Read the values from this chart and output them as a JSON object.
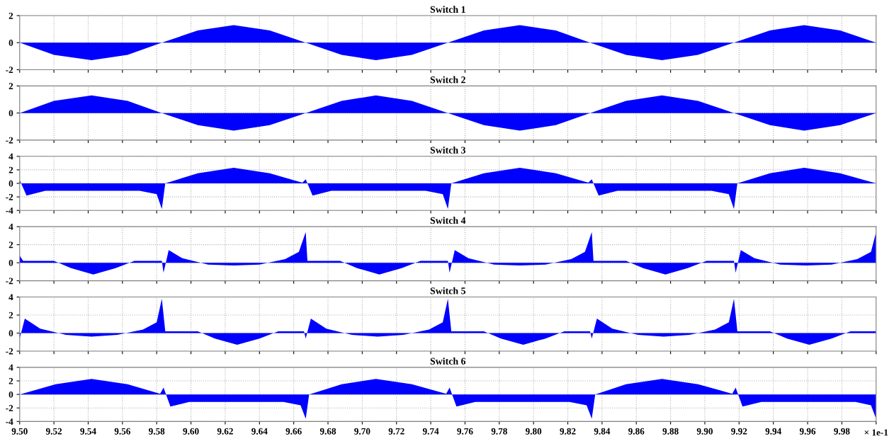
{
  "chart_data": [
    {
      "type": "area",
      "title": "Switch 1",
      "tick_labels": "y",
      "grid": true,
      "xlim": [
        9.5,
        10.0
      ],
      "ylim": [
        -2,
        2
      ],
      "yticks": [
        -2,
        0,
        2
      ],
      "xticks": [
        {
          "value": 9.5,
          "label": null
        },
        {
          "value": 9.52,
          "label": null
        },
        {
          "value": 9.54,
          "label": null
        },
        {
          "value": 9.56,
          "label": null
        },
        {
          "value": 9.58,
          "label": null
        },
        {
          "value": 9.6,
          "label": null
        },
        {
          "value": 9.62,
          "label": null
        },
        {
          "value": 9.64,
          "label": null
        },
        {
          "value": 9.66,
          "label": null
        },
        {
          "value": 9.68,
          "label": null
        },
        {
          "value": 9.7,
          "label": null
        },
        {
          "value": 9.72,
          "label": null
        },
        {
          "value": 9.74,
          "label": null
        },
        {
          "value": 9.76,
          "label": null
        },
        {
          "value": 9.78,
          "label": null
        },
        {
          "value": 9.8,
          "label": null
        },
        {
          "value": 9.82,
          "label": null
        },
        {
          "value": 9.84,
          "label": null
        },
        {
          "value": 9.86,
          "label": null
        },
        {
          "value": 9.88,
          "label": null
        },
        {
          "value": 9.9,
          "label": null
        },
        {
          "value": 9.92,
          "label": null
        },
        {
          "value": 9.94,
          "label": null
        },
        {
          "value": 9.96,
          "label": null
        },
        {
          "value": 9.98,
          "label": null
        },
        {
          "value": 10.0,
          "label": null
        }
      ],
      "x": [
        9.5,
        9.52,
        9.542,
        9.563,
        9.583,
        9.604,
        9.625,
        9.646,
        9.667,
        9.688,
        9.708,
        9.729,
        9.75,
        9.771,
        9.792,
        9.813,
        9.833,
        9.854,
        9.875,
        9.896,
        9.917,
        9.938,
        9.958,
        9.979,
        10.0
      ],
      "series": [
        {
          "color": "#0000ff",
          "values": [
            0,
            -0.9,
            -1.3,
            -0.9,
            0,
            0.9,
            1.3,
            0.9,
            0,
            -0.9,
            -1.3,
            -0.9,
            0,
            0.9,
            1.3,
            0.9,
            0,
            -0.9,
            -1.3,
            -0.9,
            0,
            0.9,
            1.3,
            0.9,
            0
          ]
        }
      ]
    },
    {
      "type": "area",
      "title": "Switch 2",
      "tick_labels": "y",
      "grid": true,
      "xlim": [
        9.5,
        10.0
      ],
      "ylim": [
        -2,
        2
      ],
      "yticks": [
        -2,
        0,
        2
      ],
      "xticks": [
        {
          "value": 9.5,
          "label": null
        },
        {
          "value": 9.52,
          "label": null
        },
        {
          "value": 9.54,
          "label": null
        },
        {
          "value": 9.56,
          "label": null
        },
        {
          "value": 9.58,
          "label": null
        },
        {
          "value": 9.6,
          "label": null
        },
        {
          "value": 9.62,
          "label": null
        },
        {
          "value": 9.64,
          "label": null
        },
        {
          "value": 9.66,
          "label": null
        },
        {
          "value": 9.68,
          "label": null
        },
        {
          "value": 9.7,
          "label": null
        },
        {
          "value": 9.72,
          "label": null
        },
        {
          "value": 9.74,
          "label": null
        },
        {
          "value": 9.76,
          "label": null
        },
        {
          "value": 9.78,
          "label": null
        },
        {
          "value": 9.8,
          "label": null
        },
        {
          "value": 9.82,
          "label": null
        },
        {
          "value": 9.84,
          "label": null
        },
        {
          "value": 9.86,
          "label": null
        },
        {
          "value": 9.88,
          "label": null
        },
        {
          "value": 9.9,
          "label": null
        },
        {
          "value": 9.92,
          "label": null
        },
        {
          "value": 9.94,
          "label": null
        },
        {
          "value": 9.96,
          "label": null
        },
        {
          "value": 9.98,
          "label": null
        },
        {
          "value": 10.0,
          "label": null
        }
      ],
      "x": [
        9.5,
        9.52,
        9.542,
        9.563,
        9.583,
        9.604,
        9.625,
        9.646,
        9.667,
        9.688,
        9.708,
        9.729,
        9.75,
        9.771,
        9.792,
        9.813,
        9.833,
        9.854,
        9.875,
        9.896,
        9.917,
        9.938,
        9.958,
        9.979,
        10.0
      ],
      "series": [
        {
          "color": "#0000ff",
          "values": [
            0,
            0.9,
            1.3,
            0.9,
            0,
            -0.9,
            -1.3,
            -0.9,
            0,
            0.9,
            1.3,
            0.9,
            0,
            -0.9,
            -1.3,
            -0.9,
            0,
            0.9,
            1.3,
            0.9,
            0,
            -0.9,
            -1.3,
            -0.9,
            0
          ]
        }
      ]
    },
    {
      "type": "area",
      "title": "Switch 3",
      "tick_labels": "y",
      "grid": true,
      "xlim": [
        9.5,
        10.0
      ],
      "ylim": [
        -4,
        4
      ],
      "yticks": [
        -4,
        -2,
        0,
        2,
        4
      ],
      "xticks": [
        {
          "value": 9.5,
          "label": null
        },
        {
          "value": 9.52,
          "label": null
        },
        {
          "value": 9.54,
          "label": null
        },
        {
          "value": 9.56,
          "label": null
        },
        {
          "value": 9.58,
          "label": null
        },
        {
          "value": 9.6,
          "label": null
        },
        {
          "value": 9.62,
          "label": null
        },
        {
          "value": 9.64,
          "label": null
        },
        {
          "value": 9.66,
          "label": null
        },
        {
          "value": 9.68,
          "label": null
        },
        {
          "value": 9.7,
          "label": null
        },
        {
          "value": 9.72,
          "label": null
        },
        {
          "value": 9.74,
          "label": null
        },
        {
          "value": 9.76,
          "label": null
        },
        {
          "value": 9.78,
          "label": null
        },
        {
          "value": 9.8,
          "label": null
        },
        {
          "value": 9.82,
          "label": null
        },
        {
          "value": 9.84,
          "label": null
        },
        {
          "value": 9.86,
          "label": null
        },
        {
          "value": 9.88,
          "label": null
        },
        {
          "value": 9.9,
          "label": null
        },
        {
          "value": 9.92,
          "label": null
        },
        {
          "value": 9.94,
          "label": null
        },
        {
          "value": 9.96,
          "label": null
        },
        {
          "value": 9.98,
          "label": null
        },
        {
          "value": 10.0,
          "label": null
        }
      ],
      "x": [
        9.5,
        9.504,
        9.515,
        9.57,
        9.58,
        9.583,
        9.585,
        9.604,
        9.625,
        9.646,
        9.665,
        9.667,
        9.671,
        9.682,
        9.737,
        9.747,
        9.75,
        9.752,
        9.771,
        9.792,
        9.813,
        9.832,
        9.834,
        9.838,
        9.849,
        9.904,
        9.914,
        9.917,
        9.919,
        9.938,
        9.958,
        9.979,
        10.0
      ],
      "series": [
        {
          "color": "#0000ff",
          "values": [
            0.5,
            -1.8,
            -1.1,
            -1.1,
            -1.6,
            -3.8,
            0,
            1.5,
            2.3,
            1.5,
            0.1,
            0.6,
            -1.8,
            -1.1,
            -1.1,
            -1.6,
            -3.8,
            0,
            1.5,
            2.3,
            1.5,
            0.1,
            0.6,
            -1.8,
            -1.1,
            -1.1,
            -1.6,
            -3.8,
            0,
            1.5,
            2.3,
            1.5,
            0
          ]
        }
      ]
    },
    {
      "type": "area",
      "title": "Switch 4",
      "tick_labels": "y",
      "grid": true,
      "xlim": [
        9.5,
        10.0
      ],
      "ylim": [
        -2,
        4
      ],
      "yticks": [
        -2,
        0,
        2,
        4
      ],
      "xticks": [
        {
          "value": 9.5,
          "label": null
        },
        {
          "value": 9.52,
          "label": null
        },
        {
          "value": 9.54,
          "label": null
        },
        {
          "value": 9.56,
          "label": null
        },
        {
          "value": 9.58,
          "label": null
        },
        {
          "value": 9.6,
          "label": null
        },
        {
          "value": 9.62,
          "label": null
        },
        {
          "value": 9.64,
          "label": null
        },
        {
          "value": 9.66,
          "label": null
        },
        {
          "value": 9.68,
          "label": null
        },
        {
          "value": 9.7,
          "label": null
        },
        {
          "value": 9.72,
          "label": null
        },
        {
          "value": 9.74,
          "label": null
        },
        {
          "value": 9.76,
          "label": null
        },
        {
          "value": 9.78,
          "label": null
        },
        {
          "value": 9.8,
          "label": null
        },
        {
          "value": 9.82,
          "label": null
        },
        {
          "value": 9.84,
          "label": null
        },
        {
          "value": 9.86,
          "label": null
        },
        {
          "value": 9.88,
          "label": null
        },
        {
          "value": 9.9,
          "label": null
        },
        {
          "value": 9.92,
          "label": null
        },
        {
          "value": 9.94,
          "label": null
        },
        {
          "value": 9.96,
          "label": null
        },
        {
          "value": 9.98,
          "label": null
        },
        {
          "value": 10.0,
          "label": null
        }
      ],
      "x": [
        9.5,
        9.502,
        9.52,
        9.53,
        9.543,
        9.556,
        9.567,
        9.583,
        9.584,
        9.587,
        9.595,
        9.61,
        9.625,
        9.64,
        9.655,
        9.663,
        9.667,
        9.668,
        9.687,
        9.697,
        9.71,
        9.723,
        9.734,
        9.75,
        9.751,
        9.754,
        9.762,
        9.777,
        9.792,
        9.807,
        9.822,
        9.83,
        9.834,
        9.835,
        9.854,
        9.864,
        9.877,
        9.89,
        9.901,
        9.917,
        9.918,
        9.921,
        9.929,
        9.944,
        9.959,
        9.974,
        9.989,
        9.997,
        10.0
      ],
      "series": [
        {
          "color": "#0000ff",
          "values": [
            0.8,
            0.2,
            0.2,
            -0.6,
            -1.3,
            -0.6,
            0.2,
            0.2,
            -1.1,
            1.4,
            0.5,
            -0.2,
            -0.3,
            -0.2,
            0.4,
            1.2,
            3.4,
            0.2,
            0.2,
            -0.6,
            -1.3,
            -0.6,
            0.2,
            0.2,
            -1.1,
            1.4,
            0.5,
            -0.2,
            -0.3,
            -0.2,
            0.4,
            1.2,
            3.4,
            0.2,
            0.2,
            -0.6,
            -1.3,
            -0.6,
            0.2,
            0.2,
            -1.1,
            1.4,
            0.5,
            -0.2,
            -0.3,
            -0.2,
            0.4,
            1.2,
            3.4
          ]
        }
      ]
    },
    {
      "type": "area",
      "title": "Switch 5",
      "tick_labels": "y",
      "grid": true,
      "xlim": [
        9.5,
        10.0
      ],
      "ylim": [
        -2,
        4
      ],
      "yticks": [
        -2,
        0,
        2,
        4
      ],
      "xticks": [
        {
          "value": 9.5,
          "label": null
        },
        {
          "value": 9.52,
          "label": null
        },
        {
          "value": 9.54,
          "label": null
        },
        {
          "value": 9.56,
          "label": null
        },
        {
          "value": 9.58,
          "label": null
        },
        {
          "value": 9.6,
          "label": null
        },
        {
          "value": 9.62,
          "label": null
        },
        {
          "value": 9.64,
          "label": null
        },
        {
          "value": 9.66,
          "label": null
        },
        {
          "value": 9.68,
          "label": null
        },
        {
          "value": 9.7,
          "label": null
        },
        {
          "value": 9.72,
          "label": null
        },
        {
          "value": 9.74,
          "label": null
        },
        {
          "value": 9.76,
          "label": null
        },
        {
          "value": 9.78,
          "label": null
        },
        {
          "value": 9.8,
          "label": null
        },
        {
          "value": 9.82,
          "label": null
        },
        {
          "value": 9.84,
          "label": null
        },
        {
          "value": 9.86,
          "label": null
        },
        {
          "value": 9.88,
          "label": null
        },
        {
          "value": 9.9,
          "label": null
        },
        {
          "value": 9.92,
          "label": null
        },
        {
          "value": 9.94,
          "label": null
        },
        {
          "value": 9.96,
          "label": null
        },
        {
          "value": 9.98,
          "label": null
        },
        {
          "value": 10.0,
          "label": null
        }
      ],
      "x": [
        9.5,
        9.503,
        9.512,
        9.527,
        9.542,
        9.557,
        9.572,
        9.58,
        9.583,
        9.585,
        9.604,
        9.614,
        9.627,
        9.64,
        9.651,
        9.666,
        9.667,
        9.67,
        9.679,
        9.694,
        9.709,
        9.724,
        9.739,
        9.747,
        9.75,
        9.752,
        9.771,
        9.781,
        9.794,
        9.807,
        9.818,
        9.833,
        9.834,
        9.837,
        9.846,
        9.861,
        9.876,
        9.891,
        9.906,
        9.914,
        9.917,
        9.919,
        9.938,
        9.948,
        9.961,
        9.974,
        9.985,
        10.0
      ],
      "series": [
        {
          "color": "#0000ff",
          "values": [
            -0.6,
            1.6,
            0.5,
            -0.2,
            -0.4,
            -0.2,
            0.4,
            1.2,
            3.8,
            0.2,
            0.2,
            -0.6,
            -1.3,
            -0.6,
            0.2,
            0.2,
            -0.6,
            1.6,
            0.5,
            -0.2,
            -0.4,
            -0.2,
            0.4,
            1.2,
            3.8,
            0.2,
            0.2,
            -0.6,
            -1.3,
            -0.6,
            0.2,
            0.2,
            -0.6,
            1.6,
            0.5,
            -0.2,
            -0.4,
            -0.2,
            0.4,
            1.2,
            3.8,
            0.2,
            0.2,
            -0.6,
            -1.3,
            -0.6,
            0.2,
            0.2
          ]
        }
      ]
    },
    {
      "type": "area",
      "title": "Switch 6",
      "xlabel": "× 1e-1",
      "grid": true,
      "xlim": [
        9.5,
        10.0
      ],
      "ylim": [
        -4,
        4
      ],
      "yticks": [
        -4,
        -2,
        0,
        2,
        4
      ],
      "xticks": [
        {
          "value": 9.5,
          "label": "9.50"
        },
        {
          "value": 9.52,
          "label": "9.52"
        },
        {
          "value": 9.54,
          "label": "9.54"
        },
        {
          "value": 9.56,
          "label": "9.56"
        },
        {
          "value": 9.58,
          "label": "9.58"
        },
        {
          "value": 9.6,
          "label": "9.60"
        },
        {
          "value": 9.62,
          "label": "9.62"
        },
        {
          "value": 9.64,
          "label": "9.64"
        },
        {
          "value": 9.66,
          "label": "9.66"
        },
        {
          "value": 9.68,
          "label": "9.68"
        },
        {
          "value": 9.7,
          "label": "9.70"
        },
        {
          "value": 9.72,
          "label": "9.72"
        },
        {
          "value": 9.74,
          "label": "9.74"
        },
        {
          "value": 9.76,
          "label": "9.76"
        },
        {
          "value": 9.78,
          "label": "9.78"
        },
        {
          "value": 9.8,
          "label": "9.80"
        },
        {
          "value": 9.82,
          "label": "9.82"
        },
        {
          "value": 9.84,
          "label": "9.84"
        },
        {
          "value": 9.86,
          "label": "9.86"
        },
        {
          "value": 9.88,
          "label": "9.88"
        },
        {
          "value": 9.9,
          "label": "9.90"
        },
        {
          "value": 9.92,
          "label": "9.92"
        },
        {
          "value": 9.94,
          "label": "9.94"
        },
        {
          "value": 9.96,
          "label": "9.96"
        },
        {
          "value": 9.98,
          "label": "9.98"
        },
        {
          "value": 10.0,
          "label": null
        }
      ],
      "x": [
        9.5,
        9.521,
        9.542,
        9.563,
        9.582,
        9.584,
        9.588,
        9.599,
        9.654,
        9.664,
        9.667,
        9.669,
        9.688,
        9.708,
        9.729,
        9.749,
        9.751,
        9.755,
        9.766,
        9.821,
        9.831,
        9.834,
        9.836,
        9.854,
        9.875,
        9.896,
        9.916,
        9.918,
        9.922,
        9.933,
        9.988,
        9.997,
        10.0
      ],
      "series": [
        {
          "color": "#0000ff",
          "values": [
            0,
            1.5,
            2.3,
            1.5,
            0.1,
            1.0,
            -1.8,
            -1.1,
            -1.1,
            -1.6,
            -3.6,
            0,
            1.5,
            2.3,
            1.5,
            0.1,
            1.0,
            -1.8,
            -1.1,
            -1.1,
            -1.6,
            -3.6,
            0,
            1.5,
            2.3,
            1.5,
            0.1,
            1.0,
            -1.8,
            -1.1,
            -1.1,
            -1.6,
            -3.6
          ]
        }
      ]
    }
  ]
}
